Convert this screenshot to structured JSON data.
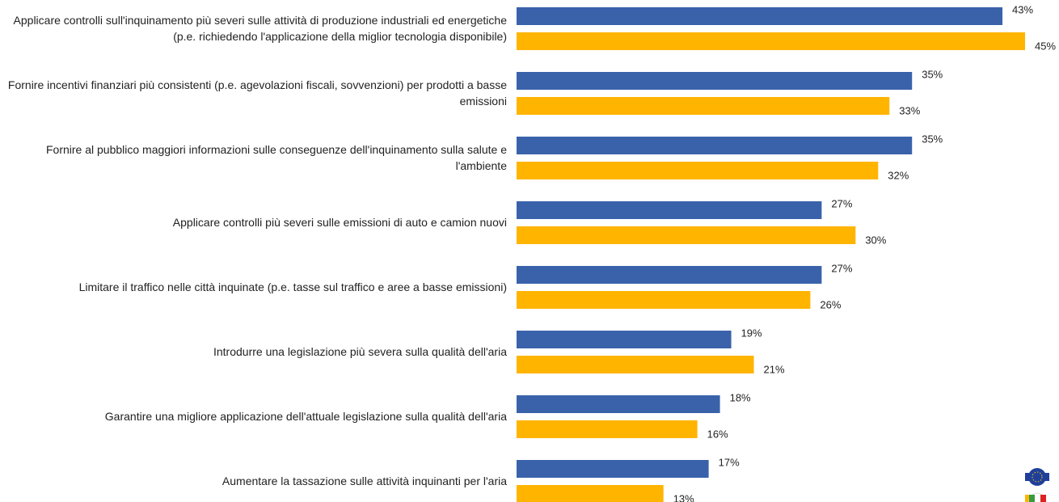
{
  "chart_data": {
    "type": "bar",
    "orientation": "horizontal",
    "categories": [
      "Applicare controlli sull'inquinamento più severi sulle attività di produzione industriali ed energetiche (p.e. richiedendo l'applicazione della miglior tecnologia disponibile)",
      "Fornire incentivi finanziari più consistenti (p.e. agevolazioni fiscali, sovvenzioni) per prodotti a basse emissioni",
      "Fornire al pubblico maggiori informazioni sulle conseguenze dell'inquinamento sulla salute e l'ambiente",
      "Applicare controlli più severi sulle emissioni di auto e camion nuovi",
      "Limitare il traffico nelle città inquinate (p.e. tasse sul traffico e aree a basse emissioni)",
      "Introdurre una legislazione più severa sulla qualità dell'aria",
      "Garantire una migliore applicazione dell'attuale legislazione sulla qualità dell'aria",
      "Aumentare la tassazione sulle attività inquinanti per l'aria"
    ],
    "series": [
      {
        "color": "#3a62ab",
        "values": [
          43,
          35,
          35,
          27,
          27,
          19,
          18,
          17
        ],
        "value_labels": [
          "43%",
          "35%",
          "35%",
          "27%",
          "27%",
          "19%",
          "18%",
          "17%"
        ]
      },
      {
        "color": "#ffb400",
        "values": [
          45,
          33,
          32,
          30,
          26,
          21,
          16,
          13
        ],
        "value_labels": [
          "45%",
          "33%",
          "32%",
          "30%",
          "26%",
          "21%",
          "16%",
          "13%"
        ]
      }
    ]
  }
}
